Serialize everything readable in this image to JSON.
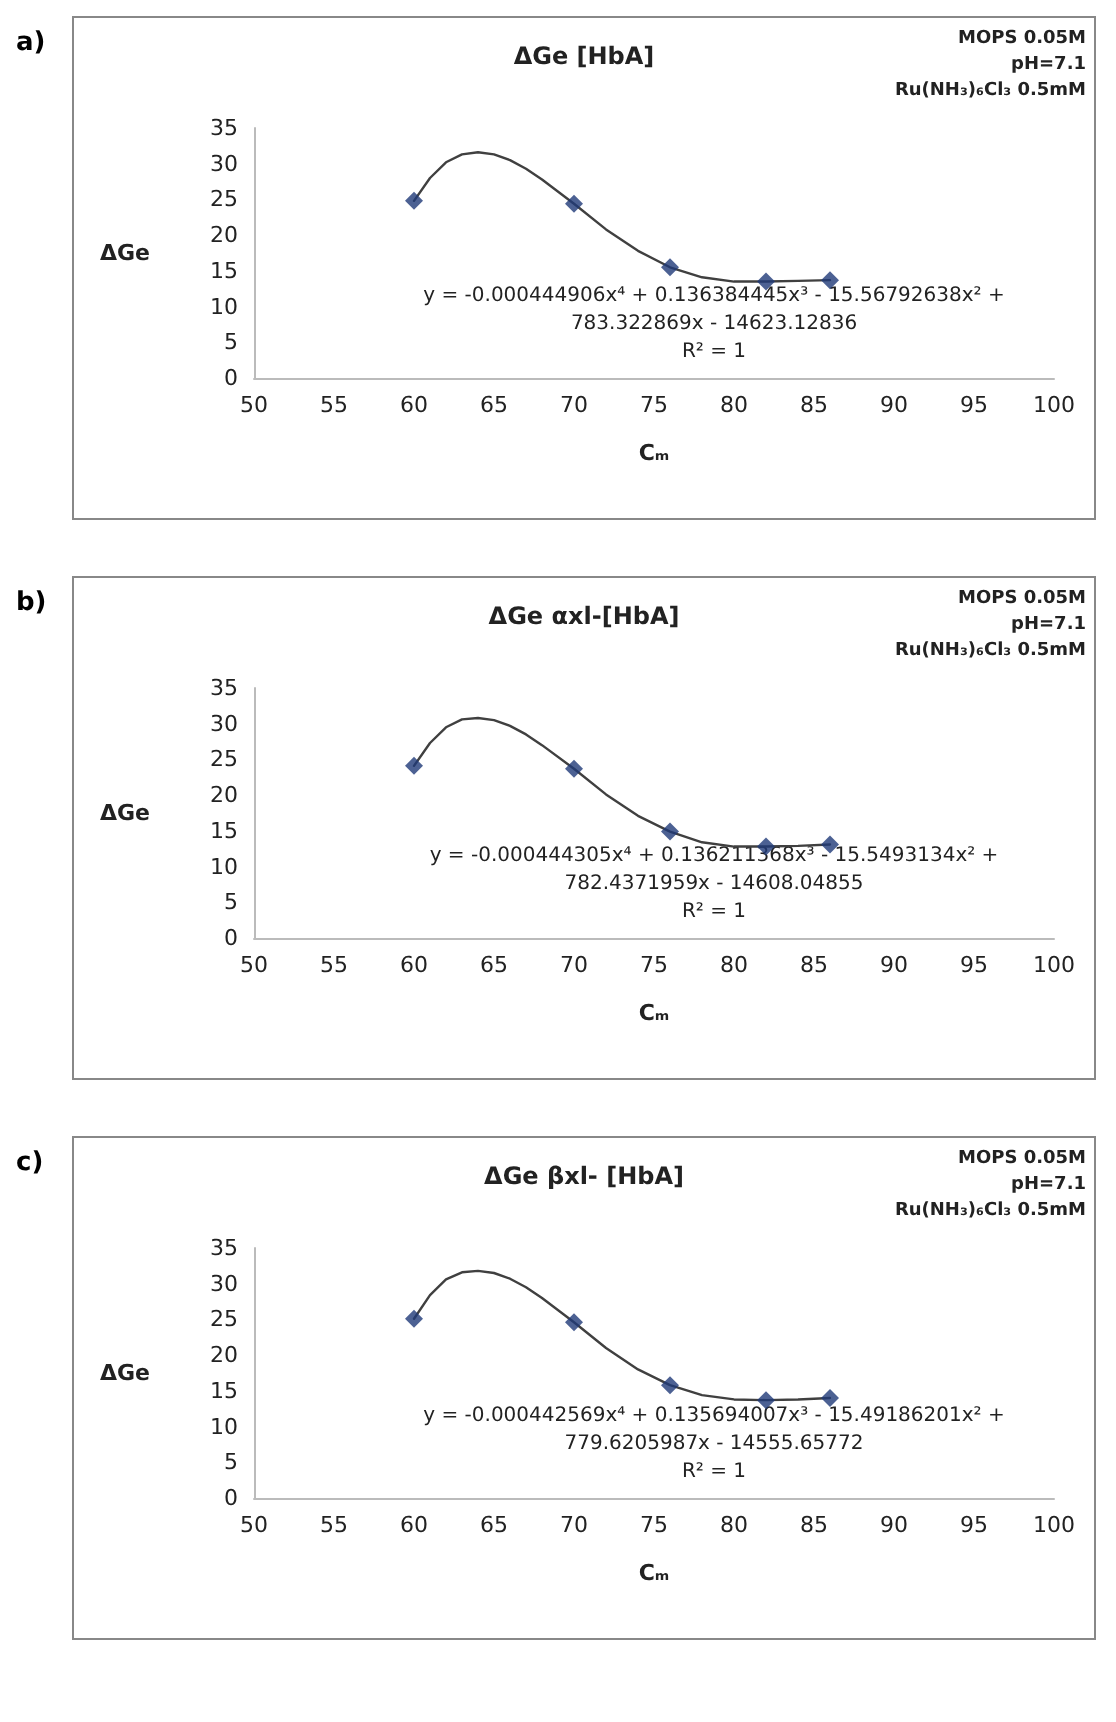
{
  "chart_data": [
    {
      "type": "scatter",
      "title": "ΔGe [HbA]",
      "xlabel": "Cₘ",
      "ylabel": "ΔGe",
      "x": [
        60,
        70,
        76,
        82,
        86
      ],
      "xlim": [
        50,
        100
      ],
      "xticks": [
        50,
        55,
        60,
        65,
        70,
        75,
        80,
        85,
        90,
        95,
        100
      ],
      "ylim": [
        0,
        35
      ],
      "yticks": [
        0,
        5,
        10,
        15,
        20,
        25,
        30,
        35
      ],
      "grid": false,
      "line_style": "solid",
      "series": [
        {
          "color": "#1f3a78",
          "marker": "diamond",
          "values": [
            24.8,
            24.4,
            15.5,
            13.5,
            13.7
          ]
        },
        {
          "type": "line",
          "color": "#404040",
          "marker": "none",
          "x": [
            60,
            61,
            62,
            63,
            64,
            65,
            66,
            67,
            68,
            70,
            72,
            74,
            76,
            78,
            80,
            82,
            84,
            86
          ],
          "values": [
            24.8,
            28,
            30.2,
            31.3,
            31.6,
            31.3,
            30.5,
            29.3,
            27.8,
            24.4,
            20.8,
            17.8,
            15.5,
            14.1,
            13.5,
            13.5,
            13.6,
            13.7
          ]
        }
      ],
      "annotations": [
        "a)",
        "MOPS 0.05M",
        "pH=7.1",
        "Ru(NH₃)₆Cl₃ 0.5mM",
        "y = -0.000444906x⁴ + 0.136384445x³ - 15.56792638x² +",
        "783.322869x - 14623.12836",
        "R² = 1"
      ]
    },
    {
      "type": "scatter",
      "title": "ΔGe αxl-[HbA]",
      "xlabel": "Cₘ",
      "ylabel": "ΔGe",
      "x": [
        60,
        70,
        76,
        82,
        86
      ],
      "xlim": [
        50,
        100
      ],
      "xticks": [
        50,
        55,
        60,
        65,
        70,
        75,
        80,
        85,
        90,
        95,
        100
      ],
      "ylim": [
        0,
        35
      ],
      "yticks": [
        0,
        5,
        10,
        15,
        20,
        25,
        30,
        35
      ],
      "grid": false,
      "line_style": "solid",
      "series": [
        {
          "color": "#1f3a78",
          "marker": "diamond",
          "values": [
            24.1,
            23.7,
            14.9,
            12.8,
            13.1
          ]
        },
        {
          "type": "line",
          "color": "#404040",
          "marker": "none",
          "x": [
            60,
            61,
            62,
            63,
            64,
            65,
            66,
            67,
            68,
            70,
            72,
            74,
            76,
            78,
            80,
            82,
            84,
            86
          ],
          "values": [
            24.1,
            27.3,
            29.5,
            30.6,
            30.8,
            30.5,
            29.7,
            28.5,
            27,
            23.7,
            20.1,
            17.1,
            14.9,
            13.4,
            12.8,
            12.8,
            12.9,
            13.1
          ]
        }
      ],
      "annotations": [
        "b)",
        "MOPS 0.05M",
        "pH=7.1",
        "Ru(NH₃)₆Cl₃ 0.5mM",
        "y = -0.000444305x⁴ + 0.136211368x³ - 15.5493134x² +",
        "782.4371959x - 14608.04855",
        "R² = 1"
      ]
    },
    {
      "type": "scatter",
      "title": "ΔGe βxl- [HbA]",
      "xlabel": "Cₘ",
      "ylabel": "ΔGe",
      "x": [
        60,
        70,
        76,
        82,
        86
      ],
      "xlim": [
        50,
        100
      ],
      "xticks": [
        50,
        55,
        60,
        65,
        70,
        75,
        80,
        85,
        90,
        95,
        100
      ],
      "ylim": [
        0,
        35
      ],
      "yticks": [
        0,
        5,
        10,
        15,
        20,
        25,
        30,
        35
      ],
      "grid": false,
      "line_style": "solid",
      "series": [
        {
          "color": "#1f3a78",
          "marker": "diamond",
          "values": [
            25.1,
            24.6,
            15.8,
            13.7,
            14.0
          ]
        },
        {
          "type": "line",
          "color": "#404040",
          "marker": "none",
          "x": [
            60,
            61,
            62,
            63,
            64,
            65,
            66,
            67,
            68,
            70,
            72,
            74,
            76,
            78,
            80,
            82,
            84,
            86
          ],
          "values": [
            25.1,
            28.4,
            30.6,
            31.6,
            31.8,
            31.5,
            30.7,
            29.5,
            28,
            24.6,
            21,
            18,
            15.8,
            14.4,
            13.8,
            13.7,
            13.8,
            14.0
          ]
        }
      ],
      "annotations": [
        "c)",
        "MOPS 0.05M",
        "pH=7.1",
        "Ru(NH₃)₆Cl₃ 0.5mM",
        "y = -0.000442569x⁴ + 0.135694007x³ - 15.49186201x² +",
        "779.6205987x - 14555.65772",
        "R² = 1"
      ]
    }
  ]
}
